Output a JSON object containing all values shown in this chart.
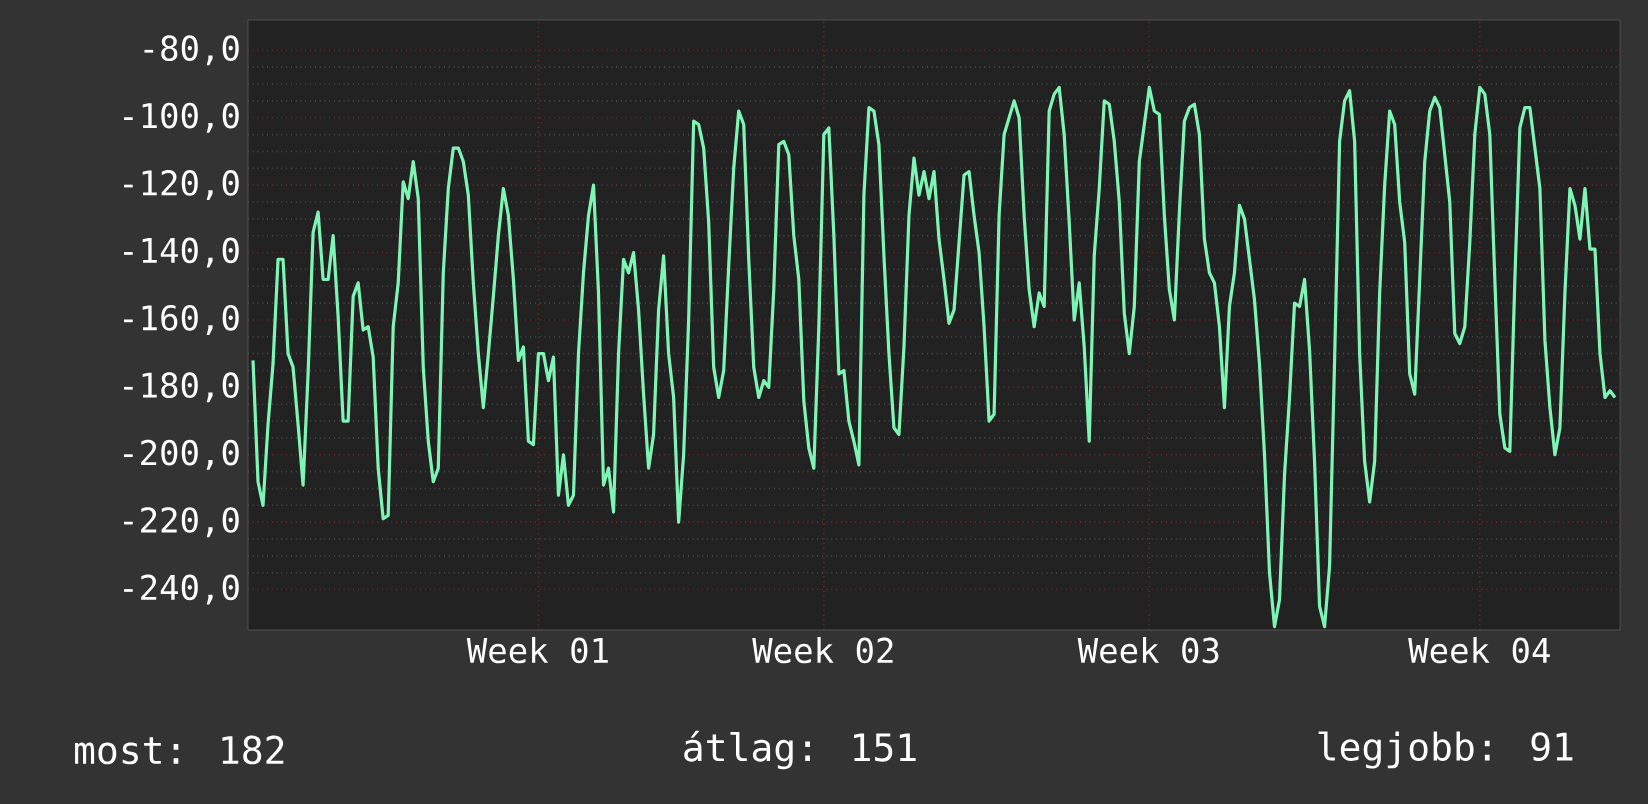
{
  "chart_data": {
    "type": "line",
    "categories": [
      null,
      null,
      null,
      null,
      null,
      null,
      null,
      null,
      null,
      null,
      null,
      null,
      null,
      null,
      null,
      null,
      null,
      null,
      null,
      null,
      null,
      null,
      null,
      null,
      null,
      null,
      null,
      null,
      null,
      null,
      null,
      null,
      null,
      null,
      null,
      null,
      null,
      null,
      null,
      null,
      null,
      null,
      null,
      null,
      null,
      null,
      null,
      null,
      null,
      null,
      null,
      null,
      null,
      null,
      null,
      null,
      null,
      "Week 01",
      null,
      null,
      null,
      null,
      null,
      null,
      null,
      null,
      null,
      null,
      null,
      null,
      null,
      null,
      null,
      null,
      null,
      null,
      null,
      null,
      null,
      null,
      null,
      null,
      null,
      null,
      null,
      null,
      null,
      null,
      null,
      null,
      null,
      null,
      null,
      null,
      null,
      null,
      null,
      null,
      null,
      null,
      null,
      null,
      null,
      null,
      null,
      null,
      null,
      null,
      null,
      null,
      null,
      null,
      null,
      null,
      "Week 02",
      null,
      null,
      null,
      null,
      null,
      null,
      null,
      null,
      null,
      null,
      null,
      null,
      null,
      null,
      null,
      null,
      null,
      null,
      null,
      null,
      null,
      null,
      null,
      null,
      null,
      null,
      null,
      null,
      null,
      null,
      null,
      null,
      null,
      null,
      null,
      null,
      null,
      null,
      null,
      null,
      null,
      null,
      null,
      null,
      null,
      null,
      null,
      null,
      null,
      null,
      null,
      null,
      null,
      null,
      null,
      null,
      null,
      null,
      null,
      null,
      null,
      null,
      null,
      null,
      "Week 03",
      null,
      null,
      null,
      null,
      null,
      null,
      null,
      null,
      null,
      null,
      null,
      null,
      null,
      null,
      null,
      null,
      null,
      null,
      null,
      null,
      null,
      null,
      null,
      null,
      null,
      null,
      null,
      null,
      null,
      null,
      null,
      null,
      null,
      null,
      null,
      null,
      null,
      null,
      null,
      null,
      null,
      null,
      null,
      null,
      null,
      null,
      null,
      null,
      null,
      null,
      null,
      null,
      null,
      null,
      null,
      null,
      null,
      null,
      null,
      null,
      null,
      null,
      null,
      null,
      null,
      "Week 04",
      null,
      null,
      null,
      null,
      null,
      null,
      null,
      null,
      null,
      null,
      null,
      null,
      null,
      null,
      null,
      null,
      null,
      null,
      null,
      null,
      null,
      null,
      null,
      null,
      null,
      null,
      null
    ],
    "series": [
      {
        "color": "#7ff5b5",
        "values": [
          -172,
          -208,
          -215,
          -191,
          -173,
          -142,
          -142,
          -170,
          -174,
          -191,
          -209,
          -176,
          -134,
          -128,
          -148,
          -148,
          -135,
          -159,
          -190,
          -190,
          -153,
          -149,
          -163,
          -162,
          -171,
          -204,
          -219,
          -218,
          -162,
          -149,
          -119,
          -124,
          -113,
          -124,
          -174,
          -196,
          -208,
          -204,
          -146,
          -121,
          -109,
          -109,
          -113,
          -123,
          -149,
          -170,
          -186,
          -170,
          -153,
          -135,
          -121,
          -129,
          -148,
          -172,
          -168,
          -196,
          -197,
          -170,
          -170,
          -178,
          -171,
          -212,
          -200,
          -215,
          -212,
          -170,
          -146,
          -129,
          -120,
          -152,
          -209,
          -204,
          -217,
          -170,
          -142,
          -146,
          -140,
          -157,
          -182,
          -204,
          -194,
          -157,
          -141,
          -170,
          -183,
          -220,
          -200,
          -160,
          -101,
          -102,
          -109,
          -131,
          -174,
          -183,
          -175,
          -144,
          -115,
          -98,
          -102,
          -142,
          -174,
          -183,
          -178,
          -180,
          -151,
          -108,
          -107,
          -111,
          -135,
          -148,
          -184,
          -198,
          -204,
          -162,
          -105,
          -103,
          -135,
          -176,
          -175,
          -190,
          -196,
          -203,
          -123,
          -97,
          -98,
          -108,
          -141,
          -170,
          -192,
          -194,
          -168,
          -129,
          -112,
          -123,
          -116,
          -124,
          -116,
          -136,
          -148,
          -161,
          -157,
          -137,
          -117,
          -116,
          -129,
          -140,
          -162,
          -190,
          -188,
          -129,
          -105,
          -100,
          -95,
          -100,
          -129,
          -151,
          -162,
          -152,
          -156,
          -98,
          -93,
          -91,
          -105,
          -131,
          -160,
          -149,
          -168,
          -196,
          -141,
          -121,
          -95,
          -96,
          -107,
          -125,
          -158,
          -170,
          -156,
          -113,
          -102,
          -91,
          -98,
          -99,
          -129,
          -151,
          -160,
          -128,
          -101,
          -97,
          -96,
          -105,
          -136,
          -146,
          -149,
          -162,
          -186,
          -156,
          -146,
          -126,
          -130,
          -142,
          -154,
          -173,
          -200,
          -235,
          -251,
          -243,
          -206,
          -183,
          -155,
          -156,
          -148,
          -169,
          -202,
          -245,
          -251,
          -233,
          -172,
          -107,
          -95,
          -92,
          -107,
          -170,
          -202,
          -214,
          -202,
          -152,
          -120,
          -98,
          -102,
          -125,
          -137,
          -176,
          -182,
          -148,
          -113,
          -98,
          -94,
          -97,
          -111,
          -125,
          -164,
          -167,
          -162,
          -137,
          -105,
          -91,
          -93,
          -105,
          -148,
          -188,
          -198,
          -199,
          -148,
          -103,
          -97,
          -97,
          -109,
          -121,
          -166,
          -186,
          -200,
          -192,
          -152,
          -121,
          -126,
          -136,
          -121,
          -139,
          -139,
          -170,
          -183,
          -181,
          -183
        ]
      }
    ],
    "ylim": [
      -252,
      -71
    ],
    "yticks": [
      {
        "value": -240,
        "label": "-240,0"
      },
      {
        "value": -220,
        "label": "-220,0"
      },
      {
        "value": -200,
        "label": "-200,0"
      },
      {
        "value": -180,
        "label": "-180,0"
      },
      {
        "value": -160,
        "label": "-160,0"
      },
      {
        "value": -140,
        "label": "-140,0"
      },
      {
        "value": -120,
        "label": "-120,0"
      },
      {
        "value": -100,
        "label": "-100,0"
      },
      {
        "value": -80,
        "label": "-80,0"
      }
    ],
    "grid": true,
    "annotations": [
      "most: 182",
      "átlag: 151",
      "legjobb: 91"
    ]
  }
}
